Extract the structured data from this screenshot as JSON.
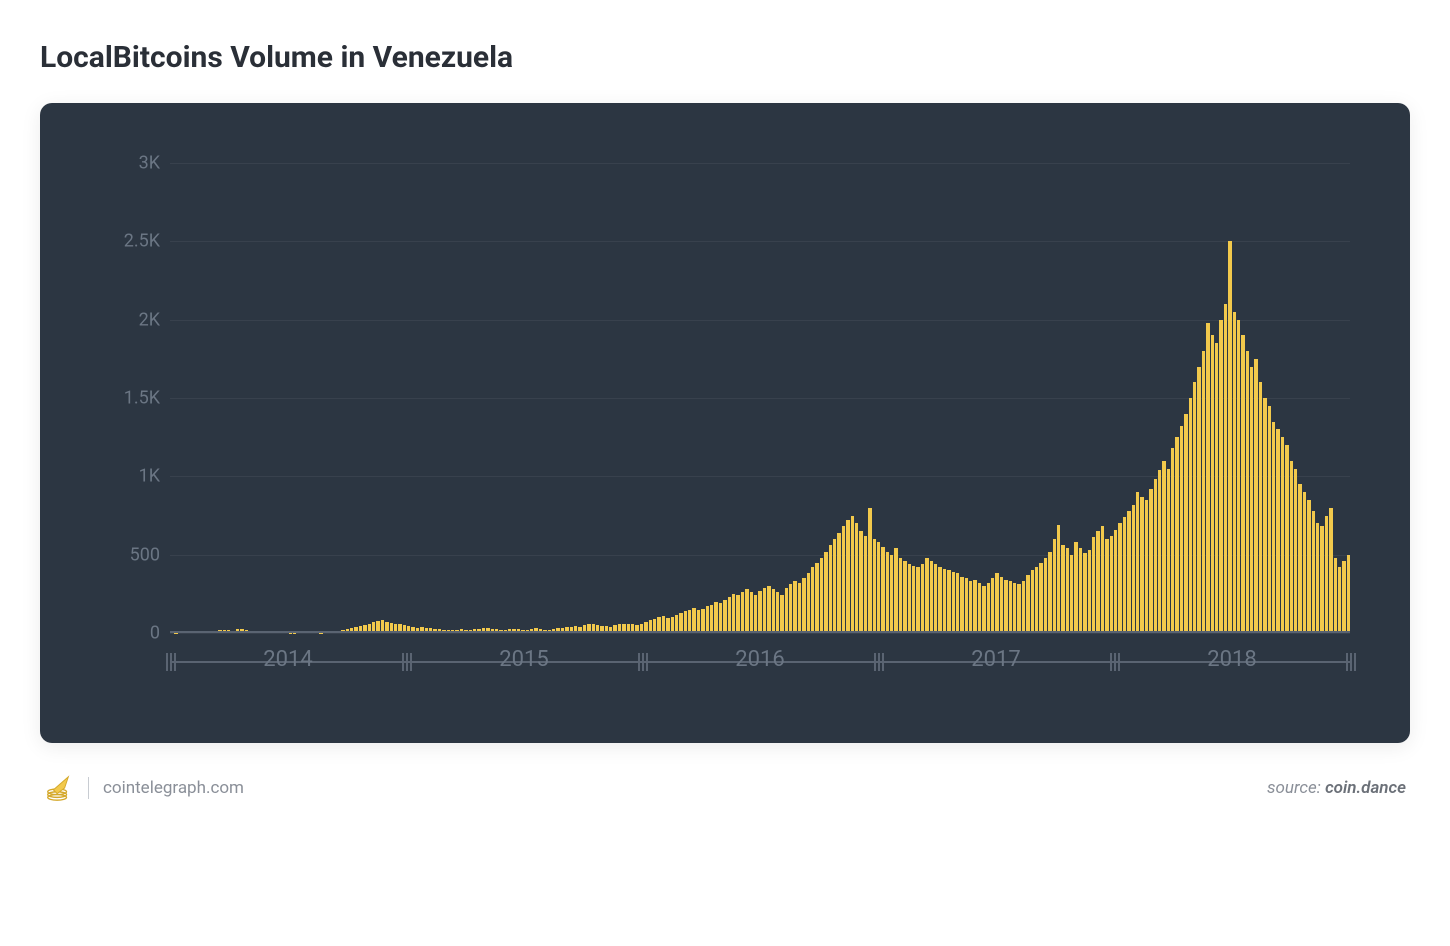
{
  "title": "LocalBitcoins Volume in Venezuela",
  "footer": {
    "site": "cointelegraph.com",
    "source_label": "source:",
    "source_name": "coin.dance"
  },
  "chart": {
    "type": "bar",
    "background_color": "#2c3642",
    "bar_color": "#f2c94c",
    "grid_color": "rgba(255,255,255,0.06)",
    "axis_color": "#5a6472",
    "label_color": "#6b7684",
    "title_fontsize": 30,
    "ylabel_fontsize": 18,
    "xlabel_fontsize": 22,
    "ylim": [
      0,
      3000
    ],
    "yticks": [
      {
        "value": 0,
        "label": "0"
      },
      {
        "value": 500,
        "label": "500"
      },
      {
        "value": 1000,
        "label": "1K"
      },
      {
        "value": 1500,
        "label": "1.5K"
      },
      {
        "value": 2000,
        "label": "2K"
      },
      {
        "value": 2500,
        "label": "2.5K"
      },
      {
        "value": 3000,
        "label": "3K"
      }
    ],
    "xlabels": [
      "2014",
      "2015",
      "2016",
      "2017",
      "2018"
    ],
    "values": [
      5,
      3,
      0,
      8,
      0,
      0,
      15,
      10,
      12,
      5,
      8,
      18,
      20,
      22,
      15,
      25,
      28,
      18,
      10,
      5,
      8,
      10,
      12,
      8,
      5,
      4,
      6,
      2,
      3,
      5,
      8,
      6,
      4,
      5,
      3,
      8,
      10,
      12,
      14,
      18,
      25,
      30,
      40,
      45,
      50,
      60,
      70,
      75,
      80,
      70,
      65,
      60,
      55,
      48,
      45,
      40,
      35,
      38,
      30,
      32,
      28,
      25,
      22,
      20,
      18,
      20,
      25,
      22,
      20,
      25,
      28,
      30,
      32,
      28,
      26,
      22,
      20,
      25,
      28,
      24,
      22,
      20,
      28,
      30,
      25,
      22,
      20,
      25,
      30,
      35,
      40,
      38,
      42,
      40,
      50,
      55,
      60,
      48,
      45,
      42,
      40,
      50,
      55,
      58,
      60,
      55,
      50,
      60,
      70,
      80,
      90,
      100,
      110,
      95,
      105,
      115,
      130,
      140,
      150,
      160,
      145,
      155,
      170,
      180,
      200,
      190,
      210,
      230,
      250,
      240,
      260,
      280,
      260,
      240,
      270,
      290,
      300,
      280,
      260,
      240,
      290,
      310,
      330,
      320,
      350,
      380,
      420,
      450,
      480,
      520,
      560,
      600,
      640,
      680,
      720,
      750,
      700,
      650,
      620,
      800,
      600,
      580,
      550,
      520,
      500,
      540,
      480,
      460,
      440,
      430,
      420,
      440,
      480,
      460,
      440,
      420,
      410,
      400,
      390,
      380,
      360,
      350,
      330,
      340,
      320,
      300,
      320,
      350,
      380,
      360,
      340,
      330,
      320,
      310,
      330,
      370,
      400,
      420,
      450,
      480,
      520,
      600,
      690,
      560,
      540,
      500,
      580,
      540,
      510,
      530,
      610,
      650,
      680,
      600,
      620,
      660,
      700,
      740,
      780,
      820,
      900,
      870,
      850,
      920,
      980,
      1040,
      1100,
      1050,
      1180,
      1250,
      1320,
      1400,
      1500,
      1600,
      1700,
      1800,
      1980,
      1900,
      1850,
      2000,
      2100,
      2500,
      2050,
      2000,
      1900,
      1800,
      1700,
      1750,
      1600,
      1500,
      1450,
      1350,
      1300,
      1250,
      1200,
      1100,
      1050,
      950,
      900,
      850,
      780,
      700,
      680,
      750,
      800,
      480,
      420,
      460,
      500
    ]
  }
}
